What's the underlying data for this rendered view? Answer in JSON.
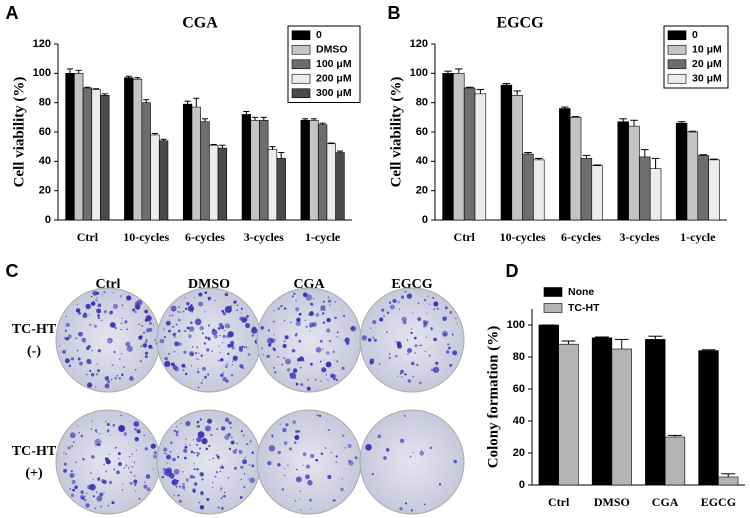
{
  "chart_data": [
    {
      "type": "bar",
      "panel_label": "A",
      "title": "CGA",
      "y_label": "Cell viability (%)",
      "categories": [
        "Ctrl",
        "10-cycles",
        "6-cycles",
        "3-cycles",
        "1-cycle"
      ],
      "series": [
        {
          "name": "0",
          "color": "#000000",
          "values": [
            100,
            97,
            79,
            72,
            68
          ],
          "errors": [
            3,
            1,
            2,
            2,
            1
          ]
        },
        {
          "name": "DMSO",
          "color": "#c4c4c4",
          "values": [
            100,
            96,
            77,
            68,
            68
          ],
          "errors": [
            2,
            1,
            6,
            2,
            1
          ]
        },
        {
          "name": "100 μM",
          "color": "#6e6e6e",
          "values": [
            90,
            80,
            67,
            68,
            65
          ],
          "errors": [
            0.5,
            2,
            2,
            2,
            1
          ]
        },
        {
          "name": "200 μM",
          "color": "#ececec",
          "values": [
            89,
            58,
            51,
            48,
            52
          ],
          "errors": [
            0.5,
            1,
            0.5,
            2,
            0.5
          ]
        },
        {
          "name": "300 μM",
          "color": "#4a4a4a",
          "values": [
            85,
            54,
            49,
            42,
            46
          ],
          "errors": [
            1,
            1,
            2,
            4,
            1
          ]
        }
      ],
      "ylim": [
        0,
        120
      ],
      "yticks": [
        0,
        20,
        40,
        60,
        80,
        100,
        120
      ],
      "legend": "upper right"
    },
    {
      "type": "bar",
      "panel_label": "B",
      "title": "EGCG",
      "y_label": "Cell viability (%)",
      "categories": [
        "Ctrl",
        "10-cycles",
        "6-cycles",
        "3-cycles",
        "1-cycle"
      ],
      "series": [
        {
          "name": "0",
          "color": "#000000",
          "values": [
            100,
            92,
            76,
            67,
            66
          ],
          "errors": [
            1.5,
            1,
            1,
            2,
            1
          ]
        },
        {
          "name": "10 μM",
          "color": "#c4c4c4",
          "values": [
            100,
            85,
            70,
            64,
            60
          ],
          "errors": [
            3,
            3,
            0.5,
            4,
            0.5
          ]
        },
        {
          "name": "20 μM",
          "color": "#6e6e6e",
          "values": [
            90,
            45,
            42,
            43,
            44
          ],
          "errors": [
            0.5,
            1,
            2,
            5,
            0.5
          ]
        },
        {
          "name": "30 μM",
          "color": "#ececec",
          "values": [
            86,
            41,
            37,
            35,
            41
          ],
          "errors": [
            3,
            1,
            0.5,
            7,
            0.5
          ]
        }
      ],
      "ylim": [
        0,
        120
      ],
      "yticks": [
        0,
        20,
        40,
        60,
        80,
        100,
        120
      ],
      "legend": "upper right"
    },
    {
      "type": "bar",
      "panel_label": "D",
      "y_label": "Colony formation (%)",
      "categories": [
        "Ctrl",
        "DMSO",
        "CGA",
        "EGCG"
      ],
      "series": [
        {
          "name": "None",
          "color": "#000000",
          "values": [
            100,
            92,
            91,
            84
          ],
          "errors": [
            0,
            0.5,
            2,
            0.5
          ]
        },
        {
          "name": "TC-HT",
          "color": "#b4b4b4",
          "values": [
            88,
            85,
            30,
            5
          ],
          "errors": [
            2,
            6,
            1,
            2
          ]
        }
      ],
      "ylim": [
        0,
        110
      ],
      "yticks": [
        0,
        20,
        40,
        60,
        80,
        100
      ],
      "legend": "top"
    }
  ],
  "panel_c": {
    "panel_label": "C",
    "columns": [
      "Ctrl",
      "DMSO",
      "CGA",
      "EGCG"
    ],
    "rows": [
      {
        "label": "TC-HT",
        "sign": "(-)"
      },
      {
        "label": "TC-HT",
        "sign": "(+)"
      }
    ]
  }
}
